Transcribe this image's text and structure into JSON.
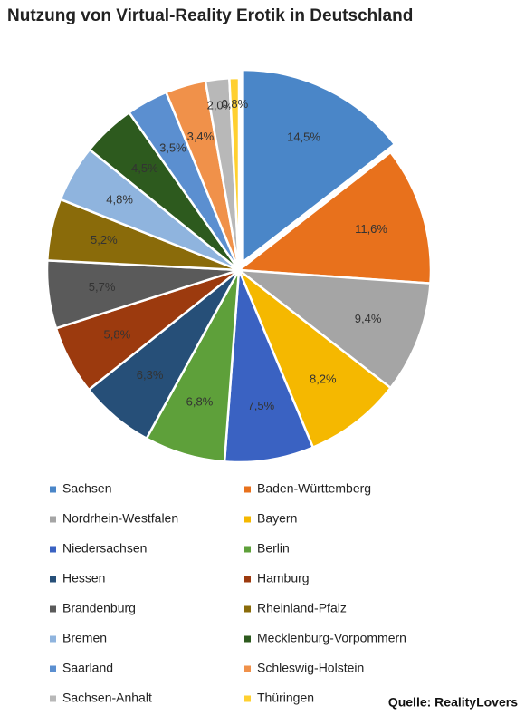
{
  "chart_data": {
    "type": "pie",
    "title": "Nutzung von Virtual-Reality Erotik in Deutschland",
    "categories": [
      "Sachsen",
      "Baden-Württemberg",
      "Nordrhein-Westfalen",
      "Bayern",
      "Niedersachsen",
      "Berlin",
      "Hessen",
      "Hamburg",
      "Brandenburg",
      "Rheinland-Pfalz",
      "Bremen",
      "Mecklenburg-Vorpommern",
      "Saarland",
      "Schleswig-Holstein",
      "Sachsen-Anhalt",
      "Thüringen"
    ],
    "values": [
      14.5,
      11.6,
      9.4,
      8.2,
      7.5,
      6.8,
      6.3,
      5.8,
      5.7,
      5.2,
      4.8,
      4.5,
      3.5,
      3.4,
      2.0,
      0.8
    ],
    "value_labels": [
      "14,5%",
      "11,6%",
      "9,4%",
      "8,2%",
      "7,5%",
      "6,8%",
      "6,3%",
      "5,8%",
      "5,7%",
      "5,2%",
      "4,8%",
      "4,5%",
      "3,5%",
      "3,4%",
      "2,0%",
      "0,8%"
    ],
    "colors": [
      "#4a86c8",
      "#e8711c",
      "#a5a5a5",
      "#f5b800",
      "#3a62c2",
      "#5ea03a",
      "#264f78",
      "#9c3a0e",
      "#5a5a5a",
      "#8a6b0a",
      "#8fb4de",
      "#2d5a1e",
      "#5b8fd0",
      "#f0914a",
      "#b8b8b8",
      "#ffd030"
    ],
    "source": "Quelle: RealityLovers"
  }
}
